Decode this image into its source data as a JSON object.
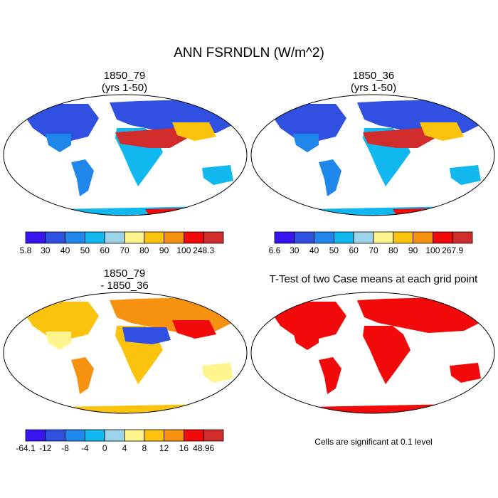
{
  "figure": {
    "title": "ANN FSRNDLN (W/m^2)"
  },
  "panels": [
    {
      "title_line1": "1850_79",
      "title_line2": "(yrs 1-50)"
    },
    {
      "title_line1": "1850_36",
      "title_line2": "(yrs 1-50)"
    },
    {
      "title_line1": "1850_79",
      "title_line2": "- 1850_36"
    },
    {
      "title": "T-Test of two Case means at each grid point",
      "note": "Cells are significant at 0.1 level"
    }
  ],
  "colorbars": [
    {
      "labels": [
        "5.8",
        "30",
        "40",
        "50",
        "60",
        "70",
        "80",
        "90",
        "100",
        "248.3"
      ],
      "colors": [
        "#3a14f0",
        "#2f50e0",
        "#1f86ec",
        "#11b8f0",
        "#9ed4ea",
        "#fff58c",
        "#fbc20e",
        "#f79210",
        "#f20a0a",
        "#d02c2c"
      ]
    },
    {
      "labels": [
        "6.6",
        "30",
        "40",
        "50",
        "60",
        "70",
        "80",
        "90",
        "100",
        "267.9"
      ],
      "colors": [
        "#3a14f0",
        "#2f50e0",
        "#1f86ec",
        "#11b8f0",
        "#9ed4ea",
        "#fff58c",
        "#fbc20e",
        "#f79210",
        "#f20a0a",
        "#d02c2c"
      ]
    },
    {
      "labels": [
        "-64.1",
        "-12",
        "-8",
        "-4",
        "0",
        "4",
        "8",
        "12",
        "16",
        "48.96"
      ],
      "colors": [
        "#3a14f0",
        "#2f50e0",
        "#1f86ec",
        "#11b8f0",
        "#9ed4ea",
        "#fff58c",
        "#fbc20e",
        "#f79210",
        "#f20a0a",
        "#d02c2c"
      ]
    }
  ]
}
